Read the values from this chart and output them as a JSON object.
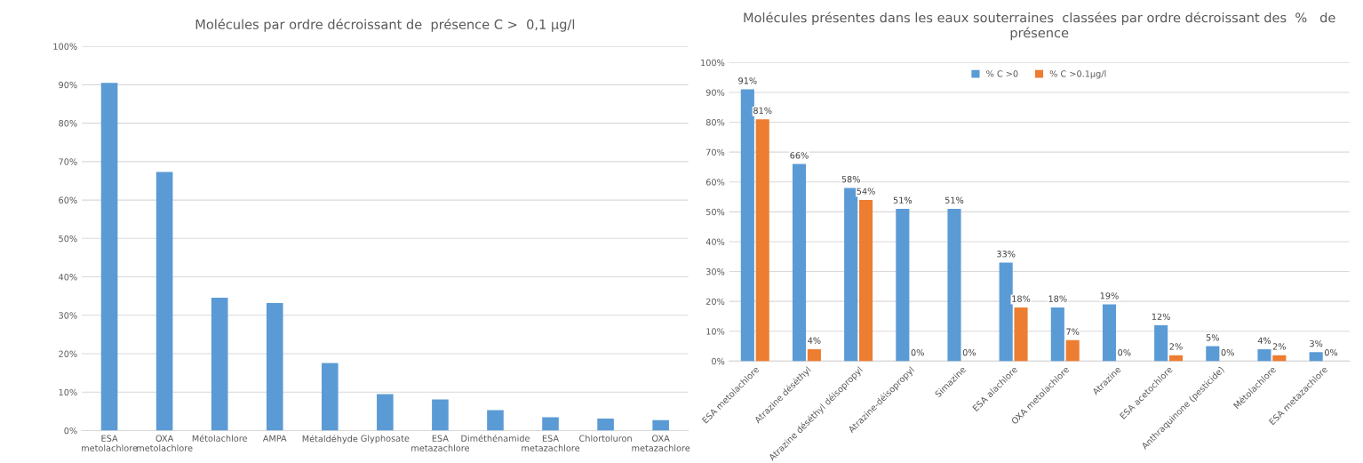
{
  "chart_data": [
    {
      "type": "bar",
      "title": "Molécules par ordre décroissant de  présence C >  0,1 µg/l",
      "categories": [
        "ESA metolachlore",
        "OXA metolachlore",
        "Métolachlore",
        "AMPA",
        "Métaldéhyde",
        "Glyphosate",
        "ESA metazachlore",
        "Diméthénamide",
        "ESA metazachlore",
        "Chlortoluron",
        "OXA metazachlore"
      ],
      "values": [
        90.5,
        67.3,
        34.6,
        33.2,
        17.6,
        9.5,
        8.1,
        5.3,
        3.5,
        3.1,
        2.7
      ],
      "color": "#5b9bd5",
      "ylim": [
        0,
        100
      ],
      "yticks": [
        {
          "value": 0,
          "label": "0%"
        },
        {
          "value": 10,
          "label": "10%"
        },
        {
          "value": 20,
          "label": "20%"
        },
        {
          "value": 30,
          "label": "30%"
        },
        {
          "value": 40,
          "label": "40%"
        },
        {
          "value": 50,
          "label": "50%"
        },
        {
          "value": 60,
          "label": "60%"
        },
        {
          "value": 70,
          "label": "70%"
        },
        {
          "value": 80,
          "label": "80%"
        },
        {
          "value": 90,
          "label": "90%"
        },
        {
          "value": 100,
          "label": "100%"
        }
      ],
      "grid": "y"
    },
    {
      "type": "bar",
      "title": "Molécules présentes dans les eaux souterraines  classées par ordre décroissant des  %   de présence",
      "categories": [
        "ESA metolachlore",
        "Atrazine déséthyl",
        "Atrazine déséthyl déisopropyl",
        "Atrazine-déisopropyl",
        "Simazine",
        "ESA alachlore",
        "OXA metolachlore",
        "Atrazine",
        "ESA acetochlore",
        "Anthraquinone (pesticide)",
        "Métolachlore",
        "ESA metazachlore"
      ],
      "series": [
        {
          "name": "% C >0",
          "color": "#5b9bd5",
          "values": [
            91,
            66,
            58,
            51,
            51,
            33,
            18,
            19,
            12,
            5,
            4,
            3
          ],
          "value_labels": [
            "91%",
            "66%",
            "58%",
            "51%",
            "51%",
            "33%",
            "18%",
            "19%",
            "12%",
            "5%",
            "4%",
            "3%"
          ]
        },
        {
          "name": "% C >0.1µg/l",
          "color": "#ed7d31",
          "values": [
            81,
            4,
            54,
            0,
            0,
            18,
            7,
            0,
            2,
            0,
            2,
            0
          ],
          "value_labels": [
            "81%",
            "4%",
            "54%",
            "0%",
            "0%",
            "18%",
            "7%",
            "0%",
            "2%",
            "0%",
            "2%",
            "0%"
          ]
        }
      ],
      "ylim": [
        0,
        100
      ],
      "yticks": [
        {
          "value": 0,
          "label": "0%"
        },
        {
          "value": 10,
          "label": "10%"
        },
        {
          "value": 20,
          "label": "20%"
        },
        {
          "value": 30,
          "label": "30%"
        },
        {
          "value": 40,
          "label": "40%"
        },
        {
          "value": 50,
          "label": "50%"
        },
        {
          "value": 60,
          "label": "60%"
        },
        {
          "value": 70,
          "label": "70%"
        },
        {
          "value": 80,
          "label": "80%"
        },
        {
          "value": 90,
          "label": "90%"
        },
        {
          "value": 100,
          "label": "100%"
        }
      ],
      "grid": "y",
      "legend": "top"
    }
  ]
}
